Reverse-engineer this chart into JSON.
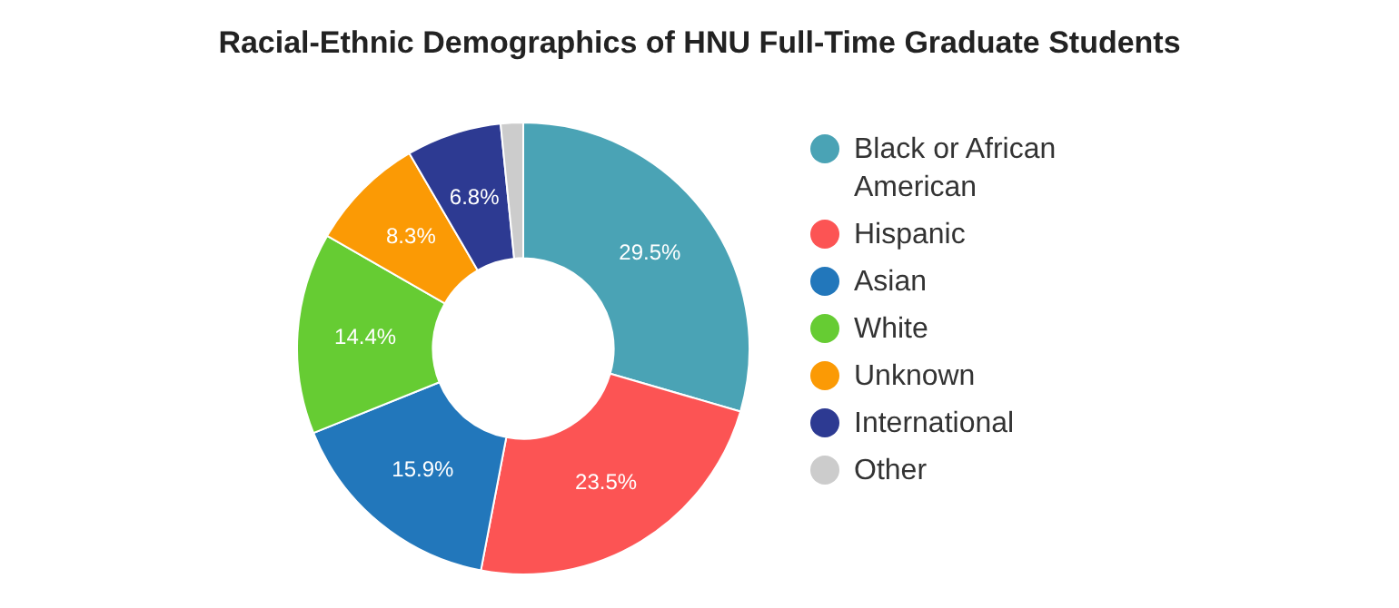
{
  "chart_data": {
    "type": "donut",
    "title": "Racial-Ethnic Demographics of HNU Full-Time Graduate Students",
    "categories": [
      "Black or African American",
      "Hispanic",
      "Asian",
      "White",
      "Unknown",
      "International",
      "Other"
    ],
    "values": [
      29.5,
      23.5,
      15.9,
      14.4,
      8.3,
      6.8,
      1.6
    ],
    "value_labels": [
      "29.5%",
      "23.5%",
      "15.9%",
      "14.4%",
      "8.3%",
      "6.8%",
      null
    ],
    "colors": [
      "#4aa3b5",
      "#fc5454",
      "#2277bb",
      "#66cc33",
      "#fb9a05",
      "#2d3a92",
      "#cccccc"
    ],
    "legend": "right"
  }
}
